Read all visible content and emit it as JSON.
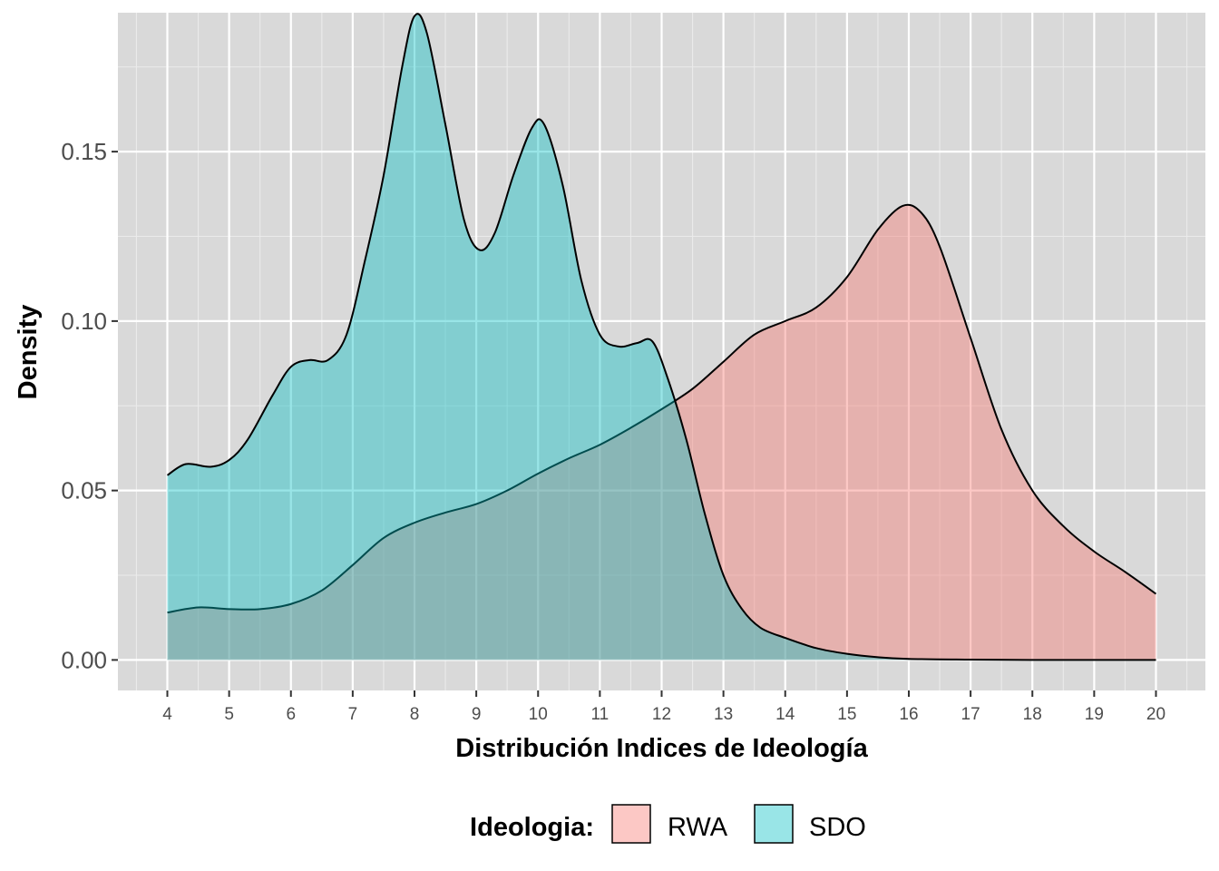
{
  "chart_data": {
    "type": "area",
    "xlabel": "Distribución Indices de Ideología",
    "ylabel": "Density",
    "xlim": [
      3.2,
      20.8
    ],
    "ylim": [
      -0.009,
      0.191
    ],
    "x_ticks": [
      4,
      5,
      6,
      7,
      8,
      9,
      10,
      11,
      12,
      13,
      14,
      15,
      16,
      17,
      18,
      19,
      20
    ],
    "y_ticks": [
      0.0,
      0.05,
      0.1,
      0.15
    ],
    "y_tick_labels": [
      "0.00",
      "0.05",
      "0.10",
      "0.15"
    ],
    "grid": true,
    "legend": {
      "title": "Ideologia:",
      "position": "bottom"
    },
    "series": [
      {
        "name": "RWA",
        "fill": "#F8766D",
        "fill_opacity": 0.4,
        "points": [
          [
            4.0,
            0.014
          ],
          [
            4.5,
            0.0155
          ],
          [
            5.0,
            0.015
          ],
          [
            5.5,
            0.015
          ],
          [
            6.0,
            0.0165
          ],
          [
            6.5,
            0.0205
          ],
          [
            7.0,
            0.028
          ],
          [
            7.5,
            0.036
          ],
          [
            8.0,
            0.0405
          ],
          [
            8.5,
            0.0435
          ],
          [
            9.0,
            0.046
          ],
          [
            9.5,
            0.05
          ],
          [
            10.0,
            0.055
          ],
          [
            10.5,
            0.0595
          ],
          [
            11.0,
            0.0635
          ],
          [
            11.5,
            0.0685
          ],
          [
            12.0,
            0.074
          ],
          [
            12.5,
            0.08
          ],
          [
            13.0,
            0.088
          ],
          [
            13.5,
            0.096
          ],
          [
            14.0,
            0.1
          ],
          [
            14.5,
            0.104
          ],
          [
            15.0,
            0.113
          ],
          [
            15.5,
            0.127
          ],
          [
            15.9,
            0.134
          ],
          [
            16.2,
            0.132
          ],
          [
            16.5,
            0.122
          ],
          [
            17.0,
            0.095
          ],
          [
            17.5,
            0.068
          ],
          [
            18.0,
            0.05
          ],
          [
            18.5,
            0.0395
          ],
          [
            19.0,
            0.032
          ],
          [
            19.5,
            0.026
          ],
          [
            20.0,
            0.0195
          ]
        ]
      },
      {
        "name": "SDO",
        "fill": "#00BFC4",
        "fill_opacity": 0.4,
        "points": [
          [
            4.0,
            0.0545
          ],
          [
            4.3,
            0.0578
          ],
          [
            4.7,
            0.057
          ],
          [
            5.0,
            0.059
          ],
          [
            5.3,
            0.065
          ],
          [
            5.7,
            0.078
          ],
          [
            6.0,
            0.0865
          ],
          [
            6.3,
            0.0885
          ],
          [
            6.6,
            0.0885
          ],
          [
            6.9,
            0.096
          ],
          [
            7.2,
            0.118
          ],
          [
            7.5,
            0.143
          ],
          [
            7.8,
            0.175
          ],
          [
            8.0,
            0.19
          ],
          [
            8.2,
            0.185
          ],
          [
            8.5,
            0.158
          ],
          [
            8.8,
            0.13
          ],
          [
            9.05,
            0.121
          ],
          [
            9.3,
            0.126
          ],
          [
            9.6,
            0.143
          ],
          [
            9.9,
            0.157
          ],
          [
            10.1,
            0.158
          ],
          [
            10.4,
            0.14
          ],
          [
            10.7,
            0.112
          ],
          [
            11.0,
            0.096
          ],
          [
            11.3,
            0.0925
          ],
          [
            11.6,
            0.0935
          ],
          [
            11.85,
            0.094
          ],
          [
            12.1,
            0.083
          ],
          [
            12.4,
            0.065
          ],
          [
            12.7,
            0.043
          ],
          [
            13.0,
            0.025
          ],
          [
            13.3,
            0.015
          ],
          [
            13.6,
            0.0095
          ],
          [
            14.0,
            0.0065
          ],
          [
            14.5,
            0.0035
          ],
          [
            15.0,
            0.0018
          ],
          [
            15.5,
            0.0008
          ],
          [
            16.0,
            0.0003
          ],
          [
            17.0,
            0.0001
          ],
          [
            18.0,
            0.0
          ],
          [
            19.0,
            0.0
          ],
          [
            20.0,
            0.0
          ]
        ]
      }
    ]
  }
}
